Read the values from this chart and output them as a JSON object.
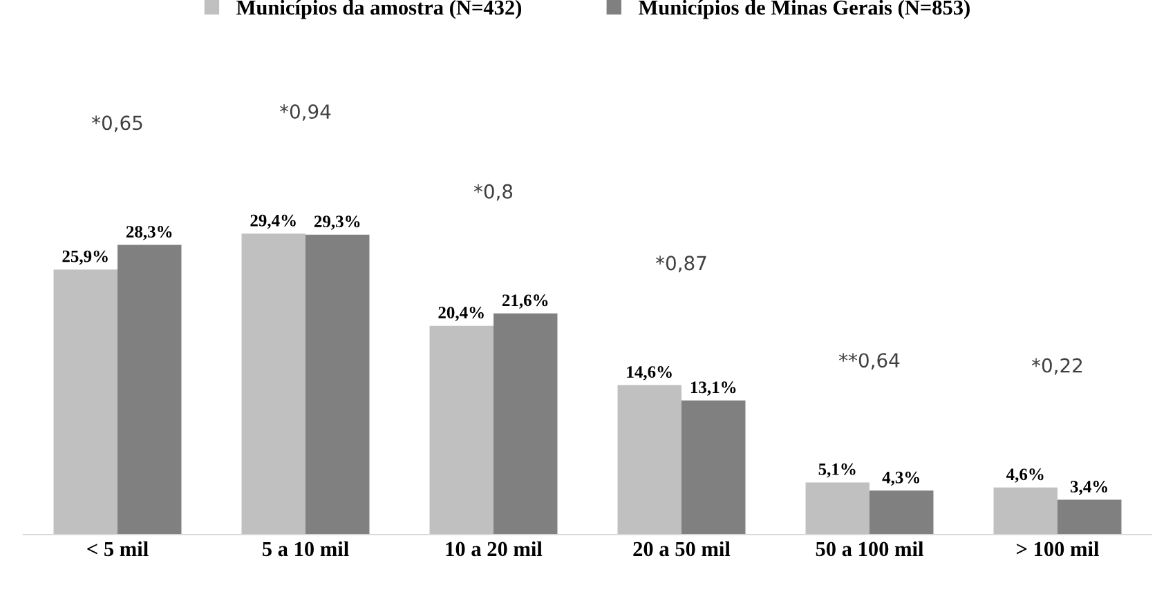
{
  "chart_data": {
    "type": "bar",
    "categories": [
      "< 5 mil",
      "5 a 10 mil",
      "10 a 20 mil",
      "20 a 50 mil",
      "50 a 100 mil",
      "> 100 mil"
    ],
    "series": [
      {
        "name": "Municípios da amostra (N=432)",
        "color": "#c0c0c0",
        "values": [
          25.9,
          29.4,
          20.4,
          14.6,
          5.1,
          4.6
        ],
        "value_labels": [
          "25,9%",
          "29,4%",
          "20,4%",
          "14,6%",
          "5,1%",
          "4,6%"
        ]
      },
      {
        "name": "Municípios de Minas Gerais (N=853)",
        "color": "#808080",
        "values": [
          28.3,
          29.3,
          21.6,
          13.1,
          4.3,
          3.4
        ],
        "value_labels": [
          "28,3%",
          "29,3%",
          "21,6%",
          "13,1%",
          "4,3%",
          "3,4%"
        ]
      }
    ],
    "annotations": [
      "*0,65",
      "*0,94",
      "*0,8",
      "*0,87",
      "**0,64",
      "*0,22"
    ],
    "tick_labels": "x",
    "legend": "top",
    "grid": false
  }
}
